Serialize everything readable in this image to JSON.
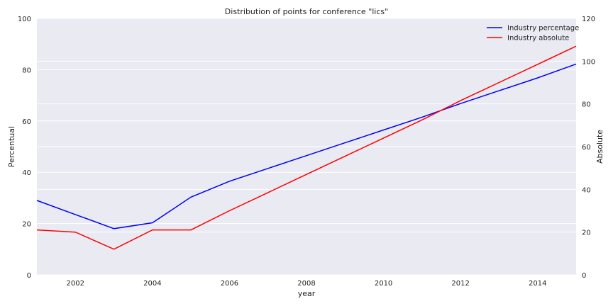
{
  "chart_data": {
    "type": "line",
    "title": "Distribution of points for conference \"lics\"",
    "xlabel": "year",
    "ylabel_left": "Percentual",
    "ylabel_right": "Absolute",
    "xlim": [
      2001,
      2015
    ],
    "ylim_left": [
      0,
      100
    ],
    "ylim_right": [
      0,
      120
    ],
    "x_ticks": [
      2002,
      2004,
      2006,
      2008,
      2010,
      2012,
      2014
    ],
    "y_ticks_left": [
      0,
      20,
      40,
      60,
      80,
      100
    ],
    "y_ticks_right": [
      0,
      20,
      40,
      60,
      80,
      100,
      120
    ],
    "grid": true,
    "legend_position": "upper right",
    "background": "#eaeaf2",
    "series": [
      {
        "name": "Industry percentage",
        "axis": "left",
        "color": "#0000ff",
        "x": [
          2001,
          2002,
          2003,
          2004,
          2005,
          2006,
          2007,
          2008,
          2009,
          2010,
          2011,
          2012,
          2013,
          2014,
          2015
        ],
        "values": [
          29,
          23.5,
          18,
          20.3,
          30.3,
          36.5,
          41.5,
          46.5,
          51.5,
          56.5,
          61.5,
          66.8,
          71.8,
          76.8,
          82.2
        ]
      },
      {
        "name": "Industry absolute",
        "axis": "right",
        "color": "#ff0000",
        "x": [
          2001,
          2002,
          2003,
          2004,
          2005,
          2006,
          2007,
          2008,
          2009,
          2010,
          2011,
          2012,
          2013,
          2014,
          2015
        ],
        "values": [
          21,
          20,
          12,
          21,
          21,
          30,
          38.5,
          47,
          55.5,
          64,
          72.5,
          81.5,
          90,
          98.5,
          107
        ]
      }
    ]
  }
}
